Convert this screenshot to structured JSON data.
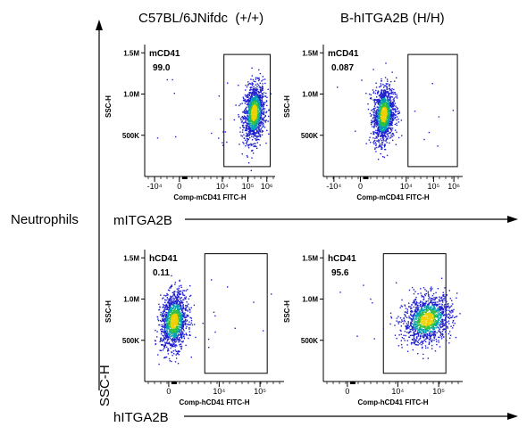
{
  "header": {
    "col_left": "C57BL/6JNifdc  (+/+)",
    "col_right": "B-hITGA2B (H/H)"
  },
  "side": {
    "row_label": "Neutrophils",
    "y_axis_label": "SSC-H",
    "arrow_top_label": "mITGA2B",
    "arrow_bottom_label": "hITGA2B"
  },
  "colors": {
    "density_low": "#1f1fd0",
    "density_mid": "#00a0b0",
    "density_mid2": "#30c040",
    "density_high": "#f0d000",
    "gate": "#000000"
  },
  "chart_data": [
    {
      "type": "scatter",
      "name": "mCD41-wildtype",
      "gate_label": "mCD41",
      "gate_value": "99.0",
      "xlabel": "Comp-mCD41 FITC-H",
      "ylabel": "SSC-H",
      "x_ticks": [
        "-10⁴",
        "0",
        "10⁴",
        "10⁵",
        "10⁶"
      ],
      "y_ticks": [
        "500K",
        "1.0M",
        "1.5M"
      ],
      "population": {
        "x_center": 5.1,
        "y_center": 0.78,
        "x_spread": 0.32,
        "y_spread": 0.17
      },
      "gate": {
        "x_range": [
          3.3,
          6.1
        ],
        "y_range": [
          0.12,
          1.48
        ]
      }
    },
    {
      "type": "scatter",
      "name": "mCD41-humanized",
      "gate_label": "mCD41",
      "gate_value": "0.087",
      "xlabel": "Comp-mCD41 FITC-H",
      "ylabel": "SSC-H",
      "x_ticks": [
        "-10⁴",
        "0",
        "10⁴",
        "10⁵",
        "10⁶"
      ],
      "y_ticks": [
        "500K",
        "1.0M",
        "1.5M"
      ],
      "population": {
        "x_center": 1.9,
        "y_center": 0.76,
        "x_spread": 0.3,
        "y_spread": 0.17
      },
      "gate": {
        "x_range": [
          3.3,
          6.1
        ],
        "y_range": [
          0.12,
          1.48
        ]
      }
    },
    {
      "type": "scatter",
      "name": "hCD41-wildtype",
      "gate_label": "hCD41",
      "gate_value": "0.11",
      "xlabel": "Comp-hCD41 FITC-H",
      "ylabel": "SSC-H",
      "x_ticks": [
        "0",
        "10⁴",
        "10⁵"
      ],
      "y_ticks": [
        "500K",
        "1.0M",
        "1.5M"
      ],
      "population": {
        "x_center": 0.3,
        "y_center": 0.74,
        "x_spread": 0.28,
        "y_spread": 0.17
      },
      "gate": {
        "x_range": [
          1.6,
          4.2
        ],
        "y_range": [
          0.1,
          1.55
        ]
      }
    },
    {
      "type": "scatter",
      "name": "hCD41-humanized",
      "gate_label": "hCD41",
      "gate_value": "95.6",
      "xlabel": "Comp-hCD41 FITC-H",
      "ylabel": "SSC-H",
      "x_ticks": [
        "0",
        "10⁴",
        "10⁵"
      ],
      "y_ticks": [
        "500K",
        "1.0M",
        "1.5M"
      ],
      "population": {
        "x_center": 3.4,
        "y_center": 0.76,
        "x_spread": 0.5,
        "y_spread": 0.14
      },
      "gate": {
        "x_range": [
          1.6,
          4.2
        ],
        "y_range": [
          0.1,
          1.55
        ]
      }
    }
  ]
}
